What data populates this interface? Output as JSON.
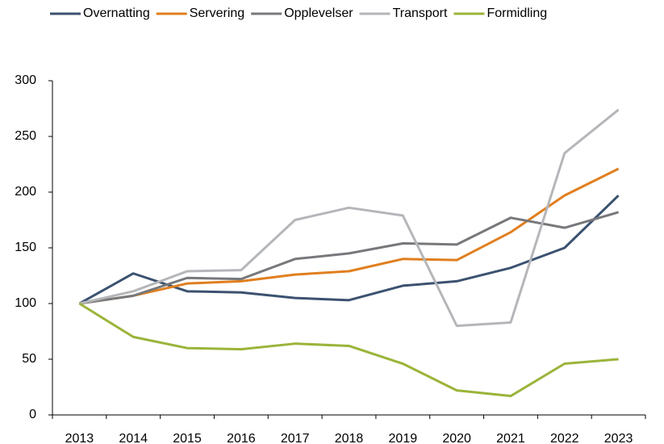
{
  "chart_data": {
    "type": "line",
    "categories": [
      "2013",
      "2014",
      "2015",
      "2016",
      "2017",
      "2018",
      "2019",
      "2020",
      "2021",
      "2022",
      "2023"
    ],
    "series": [
      {
        "name": "Overnatting",
        "color": "#3b5270",
        "values": [
          100,
          127,
          111,
          110,
          105,
          103,
          116,
          120,
          132,
          150,
          197
        ]
      },
      {
        "name": "Servering",
        "color": "#e07f1f",
        "values": [
          100,
          107,
          118,
          120,
          126,
          129,
          140,
          139,
          164,
          197,
          221
        ]
      },
      {
        "name": "Opplevelser",
        "color": "#77787b",
        "values": [
          100,
          107,
          123,
          122,
          140,
          145,
          154,
          153,
          177,
          168,
          182
        ]
      },
      {
        "name": "Transport",
        "color": "#b4b6b9",
        "values": [
          100,
          111,
          129,
          130,
          175,
          186,
          179,
          80,
          83,
          235,
          274
        ]
      },
      {
        "name": "Formidling",
        "color": "#9bb43a",
        "values": [
          100,
          70,
          60,
          59,
          64,
          62,
          46,
          22,
          17,
          46,
          50
        ]
      }
    ],
    "ylim": [
      0,
      300
    ],
    "yticks": [
      0,
      50,
      100,
      150,
      200,
      250,
      300
    ],
    "grid": false,
    "legend": "top"
  }
}
